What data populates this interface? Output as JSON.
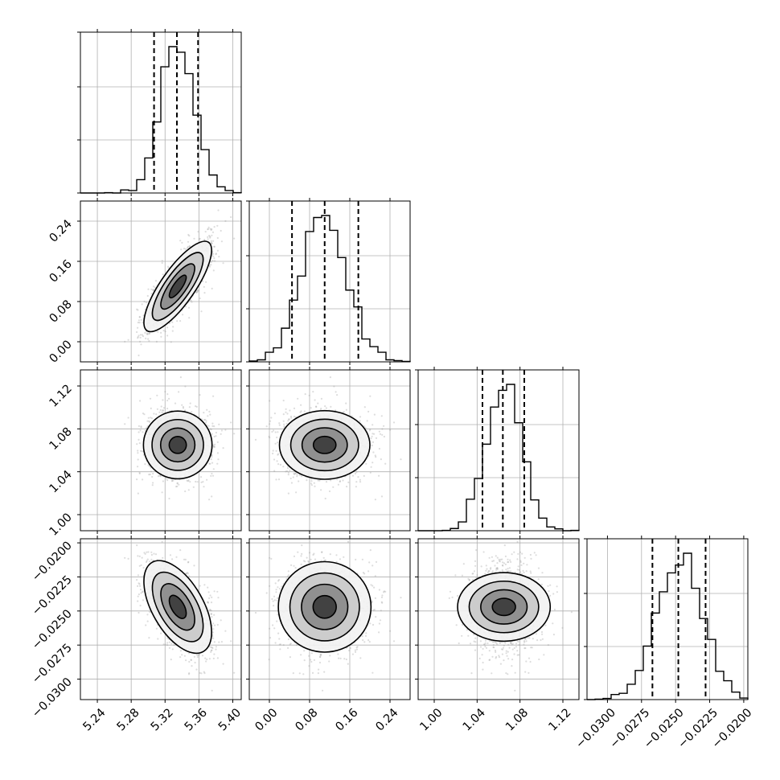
{
  "chart_data": {
    "type": "corner",
    "grid": true,
    "sample_color": "#9e9e9e",
    "line_color": "#000000",
    "parameters": [
      {
        "range": [
          5.22,
          5.41
        ],
        "ticks": [
          5.24,
          5.28,
          5.32,
          5.36,
          5.4
        ],
        "tick_labels": [
          "5.24",
          "5.28",
          "5.32",
          "5.36",
          "5.40"
        ],
        "mean": 5.335,
        "sd": 0.02,
        "quantiles": [
          5.307,
          5.334,
          5.359
        ]
      },
      {
        "range": [
          -0.04,
          0.28
        ],
        "ticks": [
          0.0,
          0.08,
          0.16,
          0.24
        ],
        "tick_labels": [
          "0.00",
          "0.08",
          "0.16",
          "0.24"
        ],
        "mean": 0.11,
        "sd": 0.045,
        "quantiles": [
          0.045,
          0.11,
          0.177
        ]
      },
      {
        "range": [
          0.985,
          1.135
        ],
        "ticks": [
          1.0,
          1.04,
          1.08,
          1.12
        ],
        "tick_labels": [
          "1.00",
          "1.04",
          "1.08",
          "1.12"
        ],
        "mean": 1.065,
        "sd": 0.016,
        "quantiles": [
          1.045,
          1.064,
          1.084
        ]
      },
      {
        "range": [
          -0.0315,
          -0.0197
        ],
        "ticks": [
          -0.03,
          -0.0275,
          -0.025,
          -0.0225,
          -0.02
        ],
        "tick_labels": [
          "−0.0300",
          "−0.0275",
          "−0.0250",
          "−0.0225",
          "−0.0200"
        ],
        "mean": -0.0247,
        "sd": 0.0017,
        "quantiles": [
          -0.0267,
          -0.0248,
          -0.0228
        ]
      }
    ],
    "correlations": [
      [
        1.0,
        0.8,
        0.0,
        -0.55
      ],
      [
        0.8,
        1.0,
        0.0,
        0.0
      ],
      [
        0.0,
        0.0,
        1.0,
        0.0
      ],
      [
        -0.55,
        0.0,
        0.0,
        1.0
      ]
    ],
    "contour_levels_sigma": [
      0.5,
      1.0,
      1.5,
      2.0
    ],
    "num_histogram_bins": 20
  }
}
